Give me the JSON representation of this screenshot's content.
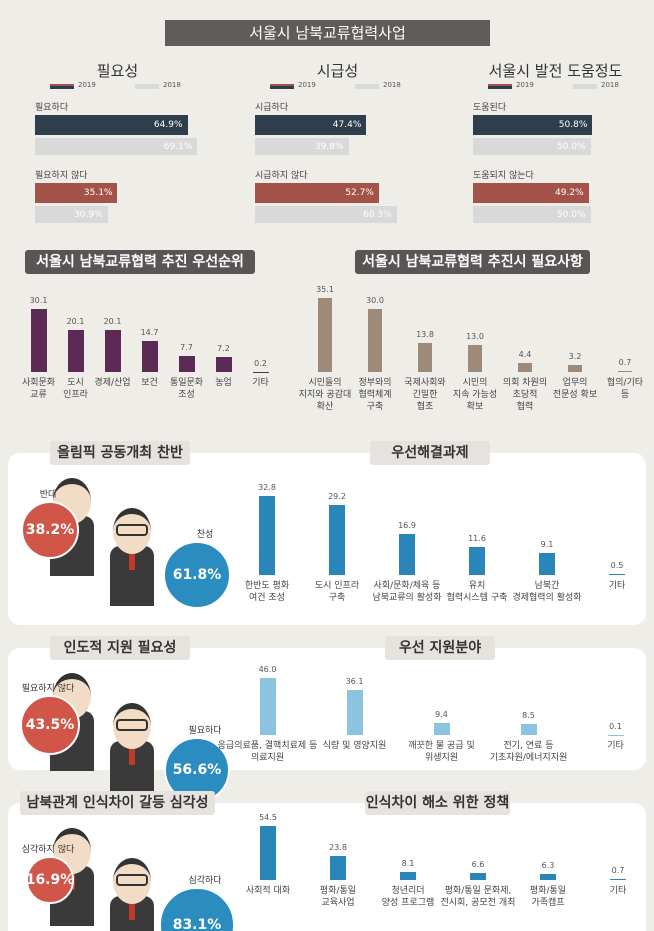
{
  "header": {
    "title": "서울시 남북교류협력사업"
  },
  "chart_data": [
    {
      "type": "hbar",
      "title": "필요성",
      "categories": [
        "필요하다",
        "필요하지 않다"
      ],
      "series": [
        {
          "name": "2019",
          "colors": [
            "#2f3e4c",
            "#a4534a"
          ],
          "values": [
            64.9,
            35.1
          ],
          "value_labels": [
            "64.9%",
            "35.1%"
          ]
        },
        {
          "name": "2018",
          "colors": [
            "#d9d9d9",
            "#d9d9d9"
          ],
          "values": [
            69.1,
            30.9
          ],
          "value_labels": [
            "69.1%",
            "30.9%"
          ]
        }
      ]
    },
    {
      "type": "hbar",
      "title": "시급성",
      "categories": [
        "시급하다",
        "시급하지 않다"
      ],
      "series": [
        {
          "name": "2019",
          "colors": [
            "#2f3e4c",
            "#a4534a"
          ],
          "values": [
            47.4,
            52.7
          ],
          "value_labels": [
            "47.4%",
            "52.7%"
          ]
        },
        {
          "name": "2018",
          "colors": [
            "#d9d9d9",
            "#d9d9d9"
          ],
          "values": [
            39.8,
            60.3
          ],
          "value_labels": [
            "39.8%",
            "60.3%"
          ]
        }
      ]
    },
    {
      "type": "hbar",
      "title": "서울시 발전 도움정도",
      "categories": [
        "도움된다",
        "도움되지 않는다"
      ],
      "series": [
        {
          "name": "2019",
          "colors": [
            "#2f3e4c",
            "#a4534a"
          ],
          "values": [
            50.8,
            49.2
          ],
          "value_labels": [
            "50.8%",
            "49.2%"
          ]
        },
        {
          "name": "2018",
          "colors": [
            "#d9d9d9",
            "#d9d9d9"
          ],
          "values": [
            50.0,
            50.0
          ],
          "value_labels": [
            "50.0%",
            "50.0%"
          ]
        }
      ]
    },
    {
      "type": "bar",
      "title": "서울시 남북교류협력 추진 우선순위",
      "color": "#5b2b56",
      "categories": [
        "사회문화\n교류",
        "도시\n인프라",
        "경제/산업",
        "보건",
        "통일문화\n조성",
        "농업",
        "기타"
      ],
      "values": [
        30.1,
        20.1,
        20.1,
        14.7,
        7.7,
        7.2,
        0.2
      ]
    },
    {
      "type": "bar",
      "title": "서울시 남북교류협력 추진시 필요사항",
      "color": "#9e8a78",
      "categories": [
        "시민들의\n지지와 공감대\n확산",
        "정부와의\n협력체계\n구축",
        "국제사회와\n긴밀한\n협조",
        "시민의\n지속 가능성\n확보",
        "의회 차원의\n초당적\n협력",
        "업무의\n전문성 확보",
        "협의/기타\n등"
      ],
      "values": [
        35.1,
        30.0,
        13.8,
        13.0,
        4.4,
        3.2,
        0.7
      ],
      "value_labels": [
        "35.1",
        "30.0",
        "13.8",
        "13.0",
        "4.4",
        "3.2",
        "0.7"
      ]
    },
    {
      "type": "pie",
      "title": "올림픽 공동개최 찬반",
      "categories": [
        "반대",
        "찬성"
      ],
      "values": [
        38.2,
        61.8
      ],
      "value_labels": [
        "38.2%",
        "61.8%"
      ],
      "colors": [
        "#d2554a",
        "#2b8cc0"
      ]
    },
    {
      "type": "bar",
      "title": "우선해결과제",
      "color": "#2a86b8",
      "categories": [
        "한반도 평화\n여건 조성",
        "도시 인프라\n구축",
        "사회/문화/체육 등\n남북교류의 활성화",
        "유치\n협력시스템 구축",
        "남북간\n경제협력의 활성화",
        "기타"
      ],
      "values": [
        32.8,
        29.2,
        16.9,
        11.6,
        9.1,
        0.5
      ]
    },
    {
      "type": "pie",
      "title": "인도적 지원 필요성",
      "categories": [
        "필요하지 않다",
        "필요하다"
      ],
      "values": [
        43.5,
        56.6
      ],
      "value_labels": [
        "43.5%",
        "56.6%"
      ],
      "colors": [
        "#d2554a",
        "#2b8cc0"
      ]
    },
    {
      "type": "bar",
      "title": "우선 지원분야",
      "color": "#8cc4e0",
      "categories": [
        "응급의료품, 결핵치료제 등\n의료지원",
        "식량 및 영양지원",
        "깨끗한 물 공급 및\n위생지원",
        "전기, 연료 등\n기초자원/에너지지원",
        "기타"
      ],
      "values": [
        46.0,
        36.1,
        9.4,
        8.5,
        0.1
      ],
      "value_labels": [
        "46.0",
        "36.1",
        "9.4",
        "8.5",
        "0.1"
      ]
    },
    {
      "type": "pie",
      "title": "남북관계 인식차이 갈등 심각성",
      "categories": [
        "심각하지 않다",
        "심각하다"
      ],
      "values": [
        16.9,
        83.1
      ],
      "value_labels": [
        "16.9%",
        "83.1%"
      ],
      "colors": [
        "#d2554a",
        "#2b8cc0"
      ]
    },
    {
      "type": "bar",
      "title": "인식차이 해소 위한 정책",
      "color": "#2a86b8",
      "categories": [
        "사회적 대화",
        "평화/통일\n교육사업",
        "청년리더\n양성 프로그램",
        "평화/통일 문화제,\n전시회, 공모전 개최",
        "평화/통일\n가족캠프",
        "기타"
      ],
      "values": [
        54.5,
        23.8,
        8.1,
        6.6,
        6.3,
        0.7
      ]
    }
  ]
}
